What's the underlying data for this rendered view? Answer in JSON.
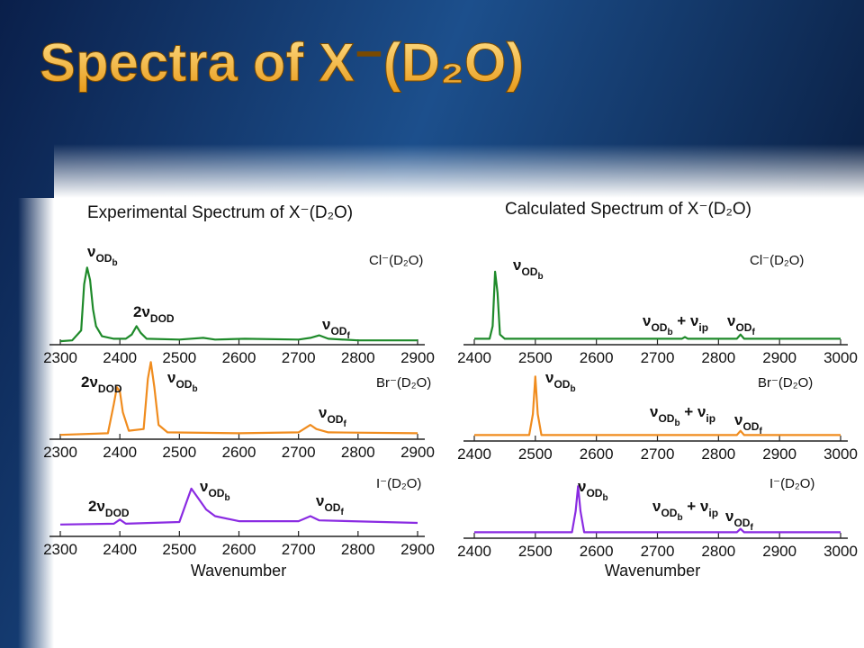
{
  "title": "Spectra of X⁻(D₂O)",
  "left_heading": "Experimental Spectrum of X⁻(D₂O)",
  "right_heading": "Calculated Spectrum of X⁻(D₂O)",
  "chart_data": [
    {
      "type": "line",
      "label": "Cl⁻(D₂O)",
      "color": "#1e8a2a",
      "xlim": [
        2300,
        2900
      ],
      "xticks": [
        2300,
        2400,
        2500,
        2600,
        2700,
        2800,
        2900
      ],
      "ylim": [
        0,
        1
      ],
      "x": [
        2300,
        2320,
        2335,
        2340,
        2345,
        2350,
        2355,
        2360,
        2370,
        2390,
        2410,
        2420,
        2428,
        2435,
        2445,
        2500,
        2540,
        2560,
        2610,
        2700,
        2720,
        2735,
        2750,
        2800,
        2900
      ],
      "values": [
        0.02,
        0.03,
        0.15,
        0.7,
        0.9,
        0.75,
        0.4,
        0.2,
        0.08,
        0.05,
        0.05,
        0.1,
        0.2,
        0.12,
        0.05,
        0.04,
        0.06,
        0.04,
        0.05,
        0.04,
        0.06,
        0.09,
        0.05,
        0.03,
        0.03
      ],
      "annotations": [
        [
          {
            "text": "ν"
          },
          {
            "sub": "OD"
          },
          {
            "subsub": "b"
          }
        ],
        [
          {
            "text": "2ν"
          },
          {
            "sub": "DOD"
          }
        ],
        [
          {
            "text": "ν"
          },
          {
            "sub": "OD"
          },
          {
            "subsub": "f"
          }
        ]
      ]
    },
    {
      "type": "line",
      "label": "Br⁻(D₂O)",
      "color": "#f08c1e",
      "xlim": [
        2300,
        2900
      ],
      "xticks": [
        2300,
        2400,
        2500,
        2600,
        2700,
        2800,
        2900
      ],
      "ylim": [
        0,
        1
      ],
      "x": [
        2300,
        2380,
        2390,
        2395,
        2400,
        2405,
        2415,
        2440,
        2447,
        2452,
        2458,
        2465,
        2480,
        2600,
        2700,
        2720,
        2730,
        2750,
        2900
      ],
      "values": [
        0.03,
        0.05,
        0.4,
        0.6,
        0.55,
        0.3,
        0.08,
        0.1,
        0.7,
        0.9,
        0.6,
        0.15,
        0.06,
        0.05,
        0.06,
        0.15,
        0.1,
        0.06,
        0.05
      ],
      "annotations": [
        [
          {
            "text": "2ν"
          },
          {
            "sub": "DOD"
          }
        ],
        [
          {
            "text": "ν"
          },
          {
            "sub": "OD"
          },
          {
            "subsub": "b"
          }
        ],
        [
          {
            "text": "ν"
          },
          {
            "sub": "OD"
          },
          {
            "subsub": "f"
          }
        ]
      ]
    },
    {
      "type": "line",
      "label": "I⁻(D₂O)",
      "color": "#8a2be2",
      "xlim": [
        2300,
        2900
      ],
      "xticks": [
        2300,
        2400,
        2500,
        2600,
        2700,
        2800,
        2900
      ],
      "ylim": [
        0,
        1
      ],
      "xlabel": "Wavenumber",
      "x": [
        2300,
        2390,
        2400,
        2410,
        2500,
        2510,
        2520,
        2530,
        2545,
        2560,
        2600,
        2700,
        2720,
        2735,
        2900
      ],
      "values": [
        0.12,
        0.13,
        0.18,
        0.13,
        0.15,
        0.35,
        0.55,
        0.45,
        0.3,
        0.22,
        0.16,
        0.16,
        0.22,
        0.17,
        0.14
      ],
      "annotations": [
        [
          {
            "text": "2ν"
          },
          {
            "sub": "DOD"
          }
        ],
        [
          {
            "text": "ν"
          },
          {
            "sub": "OD"
          },
          {
            "subsub": "b"
          }
        ],
        [
          {
            "text": "ν"
          },
          {
            "sub": "OD"
          },
          {
            "subsub": "f"
          }
        ]
      ]
    },
    {
      "type": "line",
      "label": "Cl⁻(D₂O)",
      "color": "#1e8a2a",
      "xlim": [
        2400,
        3000
      ],
      "xticks": [
        2400,
        2500,
        2600,
        2700,
        2800,
        2900,
        3000
      ],
      "ylim": [
        0,
        1
      ],
      "x": [
        2400,
        2425,
        2430,
        2434,
        2438,
        2442,
        2450,
        2740,
        2745,
        2750,
        2830,
        2836,
        2842,
        3000
      ],
      "values": [
        0.05,
        0.05,
        0.2,
        0.85,
        0.6,
        0.1,
        0.05,
        0.05,
        0.07,
        0.05,
        0.05,
        0.1,
        0.05,
        0.05
      ],
      "annotations": [
        [
          {
            "text": "ν"
          },
          {
            "sub": "OD"
          },
          {
            "subsub": "b"
          }
        ],
        [
          {
            "text": "ν"
          },
          {
            "sub": "OD"
          },
          {
            "subsub": "b"
          },
          {
            "text": " + ν"
          },
          {
            "sub": "ip"
          }
        ],
        [
          {
            "text": "ν"
          },
          {
            "sub": "OD"
          },
          {
            "subsub": "f"
          }
        ]
      ]
    },
    {
      "type": "line",
      "label": "Br⁻(D₂O)",
      "color": "#f08c1e",
      "xlim": [
        2400,
        3000
      ],
      "xticks": [
        2400,
        2500,
        2600,
        2700,
        2800,
        2900,
        3000
      ],
      "ylim": [
        0,
        1
      ],
      "x": [
        2400,
        2490,
        2496,
        2500,
        2504,
        2510,
        2830,
        2836,
        2842,
        3000
      ],
      "values": [
        0.05,
        0.05,
        0.3,
        0.75,
        0.3,
        0.05,
        0.05,
        0.1,
        0.05,
        0.05
      ],
      "annotations": [
        [
          {
            "text": "ν"
          },
          {
            "sub": "OD"
          },
          {
            "subsub": "b"
          }
        ],
        [
          {
            "text": "ν"
          },
          {
            "sub": "OD"
          },
          {
            "subsub": "b"
          },
          {
            "text": " + ν"
          },
          {
            "sub": "ip"
          }
        ],
        [
          {
            "text": "ν"
          },
          {
            "sub": "OD"
          },
          {
            "subsub": "f"
          }
        ]
      ]
    },
    {
      "type": "line",
      "label": "I⁻(D₂O)",
      "color": "#8a2be2",
      "xlim": [
        2400,
        3000
      ],
      "xticks": [
        2400,
        2500,
        2600,
        2700,
        2800,
        2900,
        3000
      ],
      "ylim": [
        0,
        1
      ],
      "xlabel": "Wavenumber",
      "x": [
        2400,
        2560,
        2566,
        2570,
        2574,
        2580,
        2830,
        2836,
        2842,
        3000
      ],
      "values": [
        0.05,
        0.05,
        0.3,
        0.6,
        0.3,
        0.05,
        0.05,
        0.09,
        0.05,
        0.05
      ],
      "annotations": [
        [
          {
            "text": "ν"
          },
          {
            "sub": "OD"
          },
          {
            "subsub": "b"
          }
        ],
        [
          {
            "text": "ν"
          },
          {
            "sub": "OD"
          },
          {
            "subsub": "b"
          },
          {
            "text": " + ν"
          },
          {
            "sub": "ip"
          }
        ],
        [
          {
            "text": "ν"
          },
          {
            "sub": "OD"
          },
          {
            "subsub": "f"
          }
        ]
      ]
    }
  ]
}
